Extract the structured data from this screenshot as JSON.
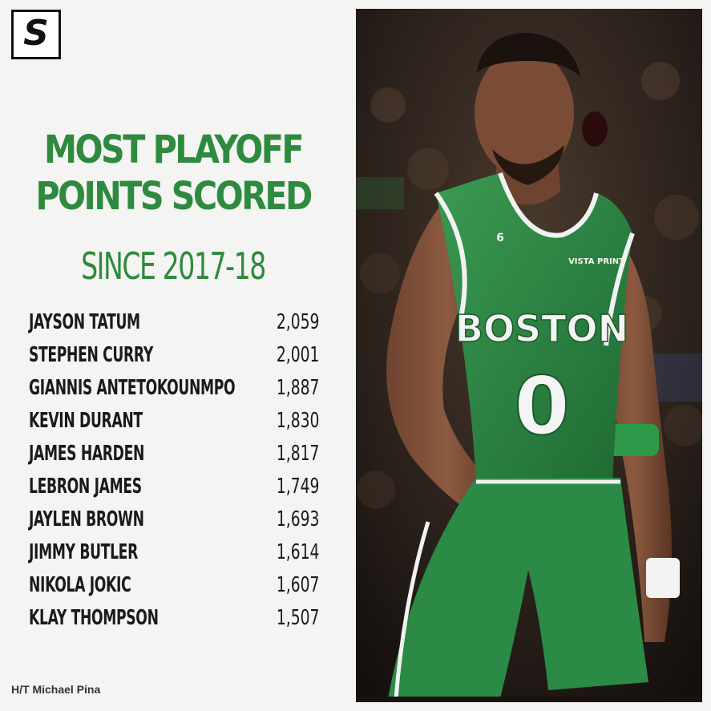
{
  "brand": {
    "logo_letter": "S"
  },
  "title": {
    "line1": "MOST PLAYOFF",
    "line2": "POINTS SCORED",
    "subtitle": "SINCE 2017-18"
  },
  "players": [
    {
      "name": "JAYSON TATUM",
      "points": "2,059"
    },
    {
      "name": "STEPHEN CURRY",
      "points": "2,001"
    },
    {
      "name": "GIANNIS ANTETOKOUNMPO",
      "points": "1,887"
    },
    {
      "name": "KEVIN DURANT",
      "points": "1,830"
    },
    {
      "name": "JAMES HARDEN",
      "points": "1,817"
    },
    {
      "name": "LEBRON JAMES",
      "points": "1,749"
    },
    {
      "name": "JAYLEN BROWN",
      "points": "1,693"
    },
    {
      "name": "JIMMY BUTLER",
      "points": "1,614"
    },
    {
      "name": "NIKOLA JOKIC",
      "points": "1,607"
    },
    {
      "name": "KLAY THOMPSON",
      "points": "1,507"
    }
  ],
  "credit": "H/T Michael Pina",
  "photo": {
    "jersey_text": "BOSTON",
    "jersey_number": "0",
    "sponsor": "VISTA PRINT",
    "chest_number": "6"
  },
  "colors": {
    "accent_green": "#2e8a3e",
    "jersey_green": "#2f8a45"
  }
}
